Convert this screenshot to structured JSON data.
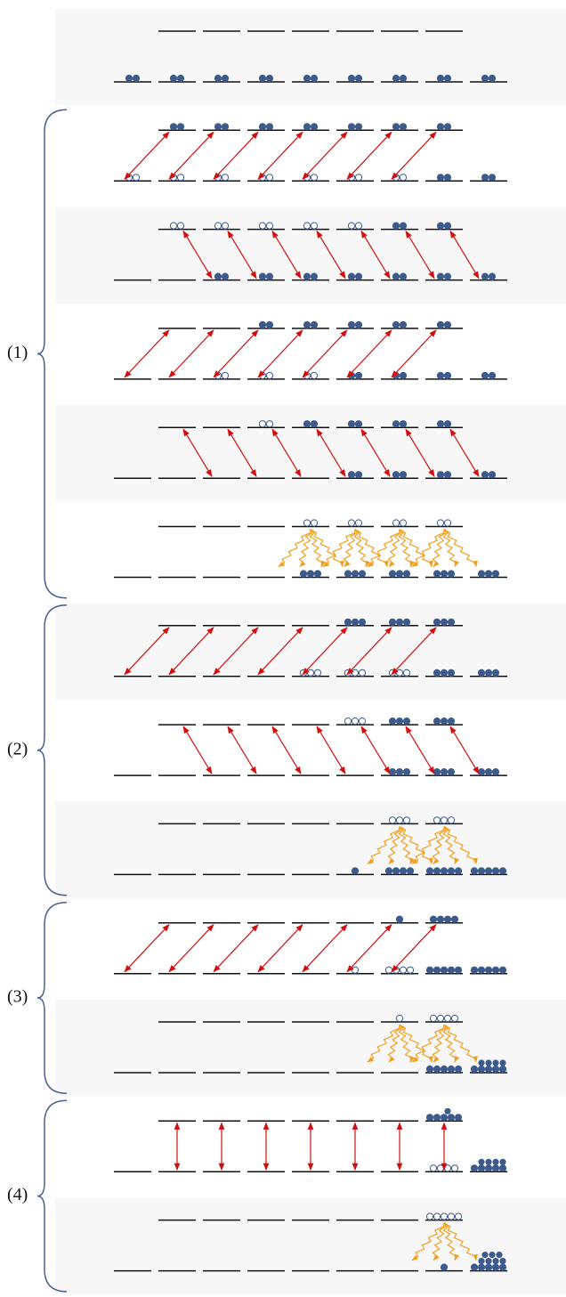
{
  "groups": [
    {
      "label": "(1)"
    },
    {
      "label": "(2)"
    },
    {
      "label": "(3)"
    },
    {
      "label": "(4)"
    }
  ]
}
